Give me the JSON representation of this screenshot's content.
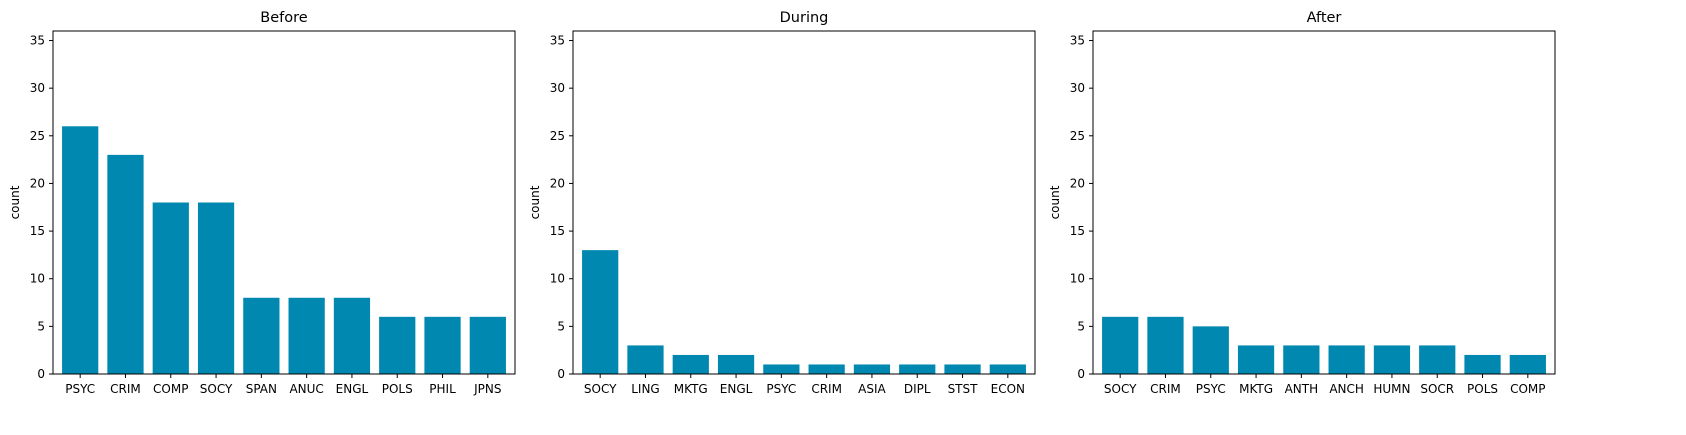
{
  "chart_data": [
    {
      "type": "bar",
      "title": "Before",
      "xlabel": "",
      "ylabel": "count",
      "ylim": [
        0,
        36
      ],
      "yticks": [
        0,
        5,
        10,
        15,
        20,
        25,
        30,
        35
      ],
      "grid": false,
      "color": "#0088b0",
      "categories": [
        "PSYC",
        "CRIM",
        "COMP",
        "SOCY",
        "SPAN",
        "ANUC",
        "ENGL",
        "POLS",
        "PHIL",
        "JPNS"
      ],
      "values": [
        26,
        23,
        18,
        18,
        8,
        8,
        8,
        6,
        6,
        6
      ]
    },
    {
      "type": "bar",
      "title": "During",
      "xlabel": "",
      "ylabel": "count",
      "ylim": [
        0,
        36
      ],
      "yticks": [
        0,
        5,
        10,
        15,
        20,
        25,
        30,
        35
      ],
      "grid": false,
      "color": "#0088b0",
      "categories": [
        "SOCY",
        "LING",
        "MKTG",
        "ENGL",
        "PSYC",
        "CRIM",
        "ASIA",
        "DIPL",
        "STST",
        "ECON"
      ],
      "values": [
        13,
        3,
        2,
        2,
        1,
        1,
        1,
        1,
        1,
        1
      ]
    },
    {
      "type": "bar",
      "title": "After",
      "xlabel": "",
      "ylabel": "count",
      "ylim": [
        0,
        36
      ],
      "yticks": [
        0,
        5,
        10,
        15,
        20,
        25,
        30,
        35
      ],
      "grid": false,
      "color": "#0088b0",
      "categories": [
        "SOCY",
        "CRIM",
        "PSYC",
        "MKTG",
        "ANTH",
        "ANCH",
        "HUMN",
        "SOCR",
        "POLS",
        "COMP"
      ],
      "values": [
        6,
        6,
        5,
        3,
        3,
        3,
        3,
        3,
        2,
        2
      ]
    }
  ]
}
